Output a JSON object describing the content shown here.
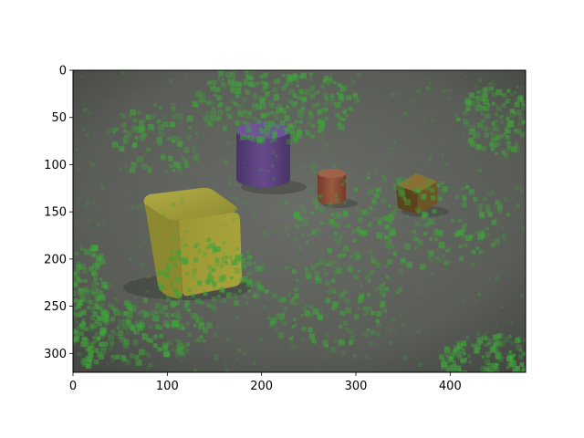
{
  "figure": {
    "colors": {
      "background": "#ffffff",
      "floor": "#5f625c",
      "noise": "#3fa33a",
      "yellow_cube": "#a4a13a",
      "purple_cylinder": "#5a3f7c",
      "red_cylinder": "#8a4b36",
      "gold_cube": "#6a5326"
    },
    "image_extent": {
      "width": 480,
      "height": 320
    },
    "x_ticks": [
      0,
      100,
      200,
      300,
      400
    ],
    "y_ticks": [
      0,
      50,
      100,
      150,
      200,
      250,
      300
    ],
    "x_tick_labels": [
      "0",
      "100",
      "200",
      "300",
      "400"
    ],
    "y_tick_labels": [
      "0",
      "50",
      "100",
      "150",
      "200",
      "250",
      "300"
    ],
    "objects": [
      {
        "kind": "cube",
        "color": "yellow",
        "material": "matte"
      },
      {
        "kind": "cylinder",
        "color": "purple",
        "material": "matte"
      },
      {
        "kind": "cylinder",
        "color": "red",
        "material": "matte"
      },
      {
        "kind": "cube",
        "color": "gold",
        "material": "metal"
      }
    ],
    "overlay": "green saliency noise"
  }
}
